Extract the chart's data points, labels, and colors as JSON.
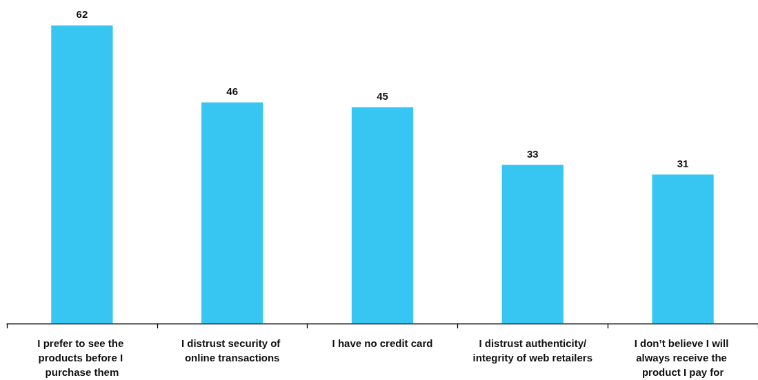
{
  "chart_data": {
    "type": "bar",
    "categories": [
      "I prefer to see the products before I purchase them",
      "I distrust security of online transactions",
      "I have no credit card",
      "I distrust authenticity/integrity of web retailers",
      "I don’t believe I will always receive the product I pay for"
    ],
    "values": [
      62,
      46,
      45,
      33,
      31
    ],
    "color": "#37c6f2",
    "data_labels": true
  }
}
